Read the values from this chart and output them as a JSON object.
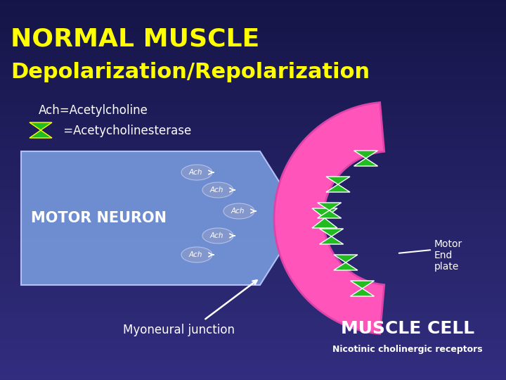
{
  "bg_color": "#2a2a6e",
  "title_line1": "NORMAL MUSCLE",
  "title_line2": "Depolarization/Repolarization",
  "title_color": "#ffff00",
  "subtitle1": "Ach=Acetylcholine",
  "subtitle2": " =Acetycholinesterase",
  "subtitle_color": "#ffffff",
  "neuron_box_color": "#7799dd",
  "neuron_text": "MOTOR NEURON",
  "neuron_text_color": "#ffffff",
  "muscle_pink": "#ff55bb",
  "muscle_edge": "#dd44aa",
  "green_color": "#22bb22",
  "hourglass_edge": "#ffffff",
  "motor_end_plate_text": "Motor\nEnd\nplate",
  "motor_end_plate_color": "#ffffff",
  "muscle_cell_text": "MUSCLE CELL",
  "muscle_cell_text_color": "#ffffff",
  "nicotinic_text": "Nicotinic cholinergic receptors",
  "nicotinic_color": "#ffffff",
  "myoneural_text": "Myoneural junction",
  "myoneural_color": "#ffffff",
  "ach_fish_color": "#8899cc",
  "ach_fish_edge": "#bbccee"
}
